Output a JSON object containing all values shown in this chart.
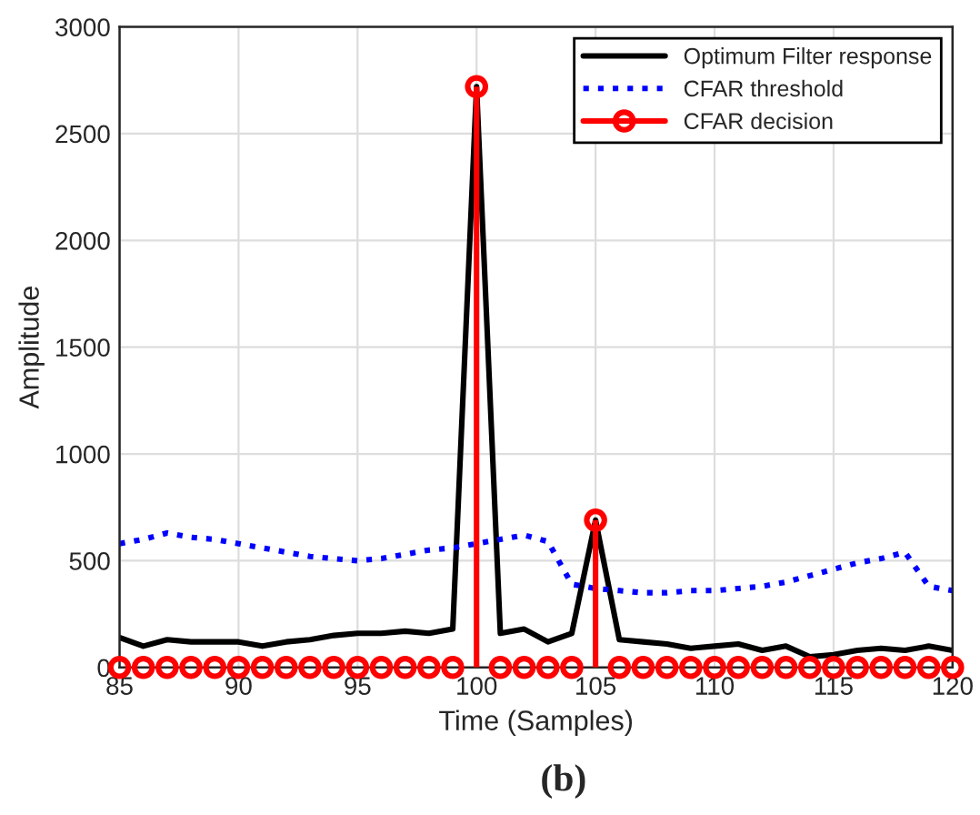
{
  "chart_data": {
    "type": "line",
    "xlabel": "Time (Samples)",
    "ylabel": "Amplitude",
    "x": [
      85,
      86,
      87,
      88,
      89,
      90,
      91,
      92,
      93,
      94,
      95,
      96,
      97,
      98,
      99,
      100,
      101,
      102,
      103,
      104,
      105,
      106,
      107,
      108,
      109,
      110,
      111,
      112,
      113,
      114,
      115,
      116,
      117,
      118,
      119,
      120
    ],
    "series": [
      {
        "name": "Optimum Filter response",
        "color": "#000000",
        "line_style": "solid",
        "marker": "none",
        "values": [
          140,
          100,
          130,
          120,
          120,
          120,
          100,
          120,
          130,
          150,
          160,
          160,
          170,
          160,
          180,
          2720,
          160,
          180,
          120,
          160,
          690,
          130,
          120,
          110,
          90,
          100,
          110,
          80,
          100,
          50,
          60,
          80,
          90,
          80,
          100,
          80
        ]
      },
      {
        "name": "CFAR threshold",
        "color": "#0000ff",
        "line_style": "dotted",
        "marker": "none",
        "values": [
          580,
          600,
          630,
          610,
          600,
          580,
          560,
          540,
          520,
          510,
          500,
          510,
          530,
          550,
          560,
          580,
          600,
          620,
          590,
          390,
          370,
          360,
          350,
          350,
          360,
          360,
          370,
          380,
          400,
          430,
          460,
          490,
          510,
          540,
          380,
          360
        ]
      },
      {
        "name": "CFAR decision",
        "color": "#ff0000",
        "type": "lollipop",
        "line_style": "solid",
        "marker": "circle",
        "values": [
          0,
          0,
          0,
          0,
          0,
          0,
          0,
          0,
          0,
          0,
          0,
          0,
          0,
          0,
          0,
          2720,
          0,
          0,
          0,
          0,
          690,
          0,
          0,
          0,
          0,
          0,
          0,
          0,
          0,
          0,
          0,
          0,
          0,
          0,
          0,
          0
        ]
      }
    ],
    "xlim": [
      85,
      120
    ],
    "xticks": [
      85,
      90,
      95,
      100,
      105,
      110,
      115,
      120
    ],
    "ylim": [
      0,
      3000
    ],
    "yticks": [
      0,
      500,
      1000,
      1500,
      2000,
      2500,
      3000
    ],
    "grid": true,
    "legend": "top right",
    "annotations": [
      "(b)"
    ]
  }
}
